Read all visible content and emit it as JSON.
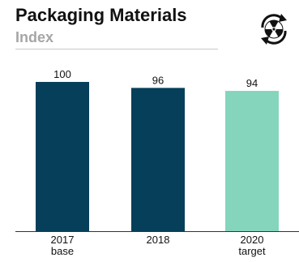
{
  "header": {
    "title": "Packaging Materials",
    "subtitle": "Index"
  },
  "icon": {
    "name": "radiation-recycle-icon",
    "color": "#111111"
  },
  "colors": {
    "bar_actual": "#063f59",
    "bar_target": "#85d5bd",
    "axis": "#333333"
  },
  "chart_data": {
    "type": "bar",
    "categories": [
      {
        "line1": "2017",
        "line2": "base"
      },
      {
        "line1": "2018",
        "line2": ""
      },
      {
        "line1": "2020",
        "line2": "target"
      }
    ],
    "values": [
      100,
      96,
      94
    ],
    "value_labels": [
      "100",
      "96",
      "94"
    ],
    "title": "",
    "xlabel": "",
    "ylabel": "",
    "ylim": [
      0,
      100
    ],
    "grid": false,
    "legend": "none"
  }
}
